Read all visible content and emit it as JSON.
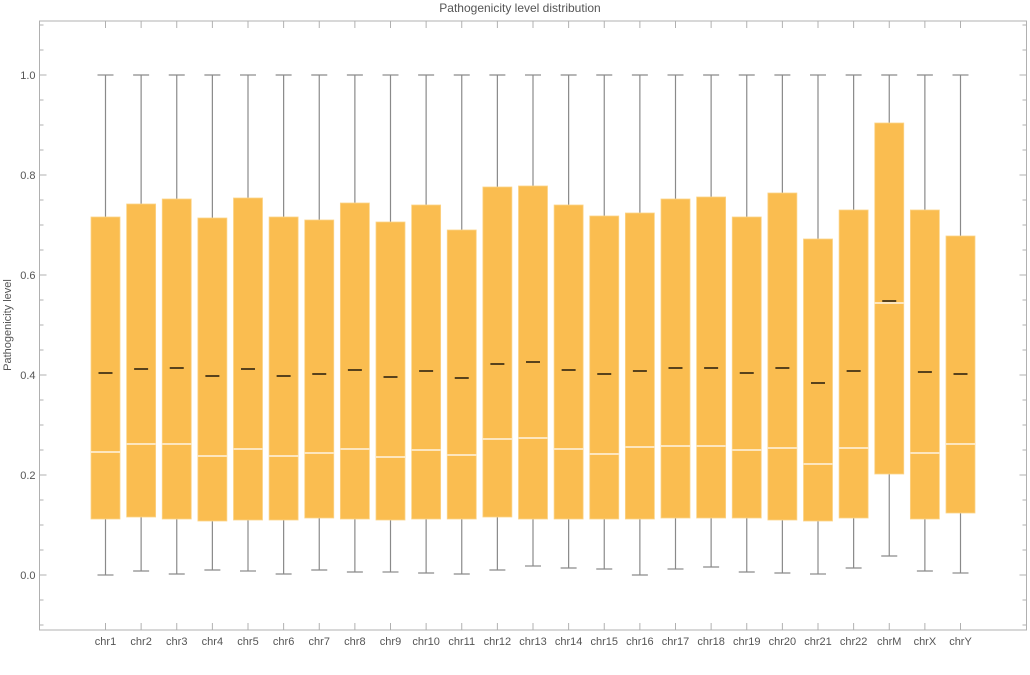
{
  "chart_data": {
    "type": "box",
    "title": "Pathogenicity level distribution",
    "xlabel": "",
    "ylabel": "Pathogenicity level",
    "ylim": [
      -0.11,
      1.108
    ],
    "yticks": [
      "0.0",
      "0.2",
      "0.4",
      "0.6",
      "0.8",
      "1.0"
    ],
    "ytick_values": [
      0,
      0.2,
      0.4,
      0.6,
      0.8,
      1.0
    ],
    "grid": false,
    "categories": [
      "chr1",
      "chr2",
      "chr3",
      "chr4",
      "chr5",
      "chr6",
      "chr7",
      "chr8",
      "chr9",
      "chr10",
      "chr11",
      "chr12",
      "chr13",
      "chr14",
      "chr15",
      "chr16",
      "chr17",
      "chr18",
      "chr19",
      "chr20",
      "chr21",
      "chr22",
      "chrM",
      "chrX",
      "chrY"
    ],
    "min": [
      0.0,
      0.008,
      0.002,
      0.01,
      0.008,
      0.002,
      0.01,
      0.006,
      0.006,
      0.004,
      0.002,
      0.01,
      0.018,
      0.014,
      0.012,
      0.0,
      0.012,
      0.016,
      0.006,
      0.004,
      0.002,
      0.014,
      0.038,
      0.008,
      0.004
    ],
    "q1": [
      0.112,
      0.116,
      0.112,
      0.108,
      0.11,
      0.11,
      0.114,
      0.112,
      0.11,
      0.112,
      0.112,
      0.116,
      0.112,
      0.112,
      0.112,
      0.112,
      0.114,
      0.114,
      0.114,
      0.11,
      0.108,
      0.114,
      0.202,
      0.112,
      0.124
    ],
    "median": [
      0.246,
      0.262,
      0.262,
      0.238,
      0.252,
      0.238,
      0.244,
      0.252,
      0.236,
      0.25,
      0.24,
      0.272,
      0.274,
      0.252,
      0.242,
      0.256,
      0.258,
      0.258,
      0.25,
      0.254,
      0.222,
      0.254,
      0.544,
      0.244,
      0.262
    ],
    "mean": [
      0.404,
      0.412,
      0.414,
      0.398,
      0.412,
      0.398,
      0.402,
      0.41,
      0.396,
      0.408,
      0.394,
      0.422,
      0.426,
      0.41,
      0.402,
      0.408,
      0.414,
      0.414,
      0.404,
      0.414,
      0.384,
      0.408,
      0.548,
      0.406,
      0.402
    ],
    "q3": [
      0.716,
      0.742,
      0.752,
      0.714,
      0.754,
      0.716,
      0.71,
      0.744,
      0.706,
      0.74,
      0.69,
      0.776,
      0.778,
      0.74,
      0.718,
      0.724,
      0.752,
      0.756,
      0.716,
      0.764,
      0.672,
      0.73,
      0.904,
      0.73,
      0.678
    ],
    "max": [
      1,
      1,
      1,
      1,
      1,
      1,
      1,
      1,
      1,
      1,
      1,
      1,
      1,
      1,
      1,
      1,
      1,
      1,
      1,
      1,
      1,
      1,
      1,
      1,
      1
    ],
    "colors": {
      "box": "#fabd50",
      "whisker": "#8a8a8a",
      "median": "#ffffff",
      "mean": "#000000",
      "frame": "#b0b0b0"
    }
  }
}
